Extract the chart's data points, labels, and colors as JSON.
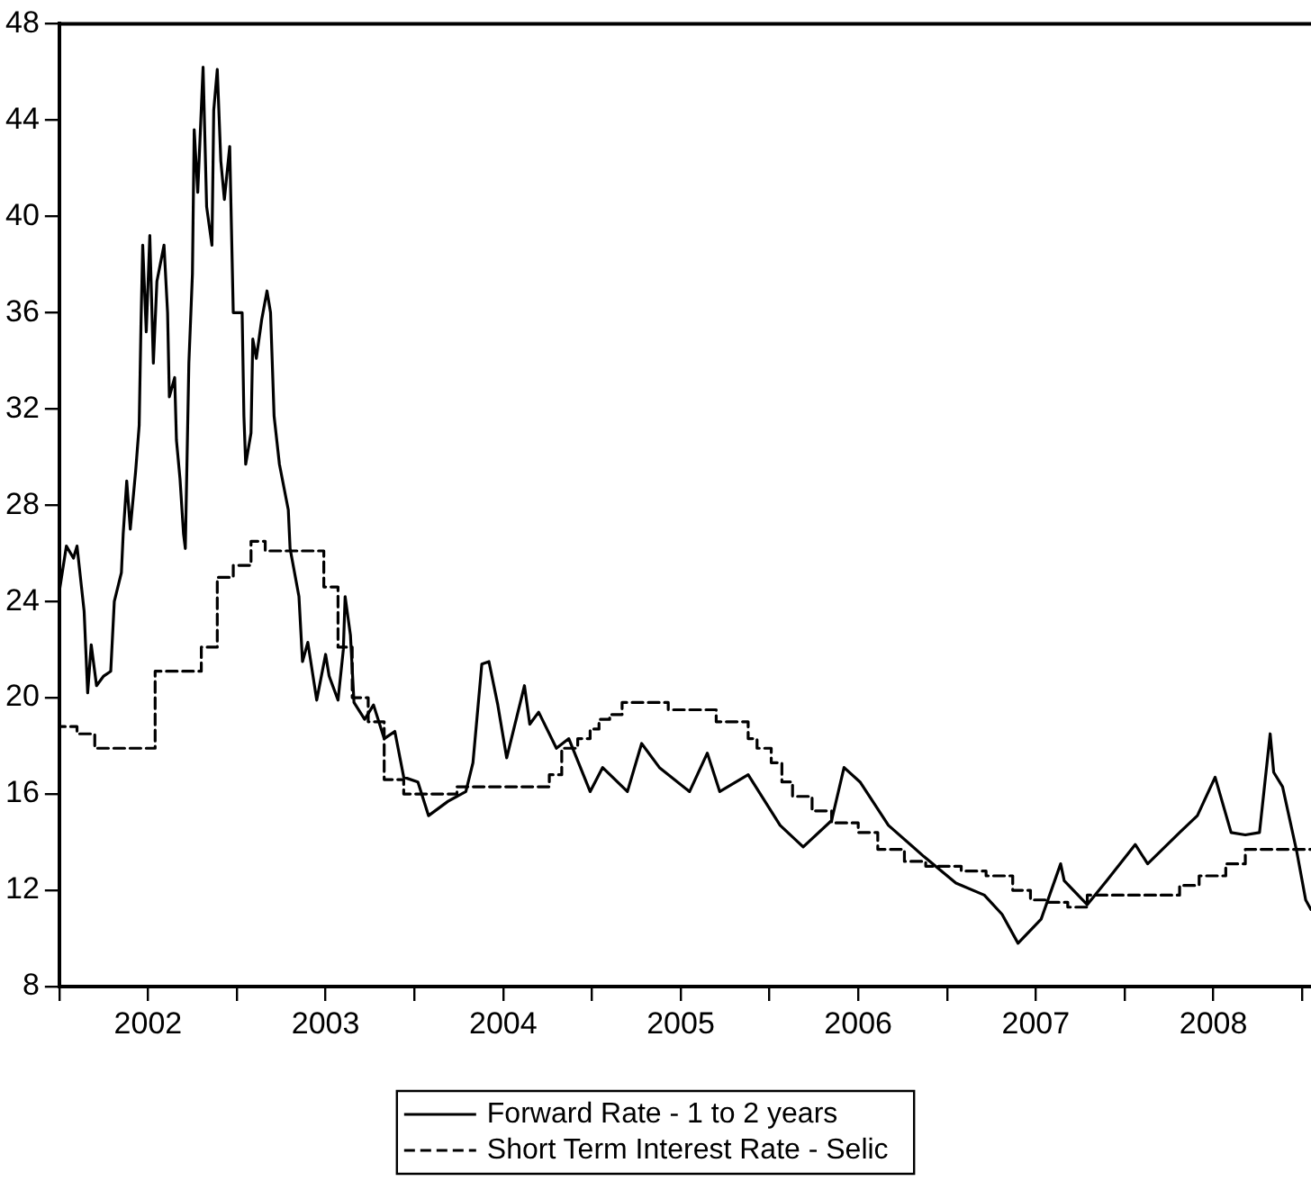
{
  "chart_data": {
    "type": "line",
    "xlim": [
      2002,
      2009.05
    ],
    "ylim": [
      8,
      48
    ],
    "yticks": [
      8,
      12,
      16,
      20,
      24,
      28,
      32,
      36,
      40,
      44,
      48
    ],
    "xticks": [
      {
        "value": 2002,
        "label": null
      },
      {
        "value": 2002.5,
        "label": "2002"
      },
      {
        "value": 2003,
        "label": null
      },
      {
        "value": 2003.5,
        "label": "2003"
      },
      {
        "value": 2004,
        "label": null
      },
      {
        "value": 2004.5,
        "label": "2004"
      },
      {
        "value": 2005,
        "label": null
      },
      {
        "value": 2005.5,
        "label": "2005"
      },
      {
        "value": 2006,
        "label": null
      },
      {
        "value": 2006.5,
        "label": "2006"
      },
      {
        "value": 2007,
        "label": null
      },
      {
        "value": 2007.5,
        "label": "2007"
      },
      {
        "value": 2008,
        "label": null
      },
      {
        "value": 2008.5,
        "label": "2008"
      },
      {
        "value": 2009,
        "label": null
      }
    ],
    "grid": false,
    "legend": "bottom",
    "marker": "none",
    "series": [
      {
        "name": "Forward Rate - 1 to 2 years",
        "color": "#000000",
        "line_style": "solid",
        "x": [
          2002,
          2002.04,
          2002.08,
          2002.1,
          2002.14,
          2002.16,
          2002.18,
          2002.21,
          2002.25,
          2002.29,
          2002.31,
          2002.35,
          2002.36,
          2002.38,
          2002.4,
          2002.43,
          2002.45,
          2002.46,
          2002.47,
          2002.49,
          2002.51,
          2002.53,
          2002.55,
          2002.59,
          2002.61,
          2002.62,
          2002.65,
          2002.66,
          2002.68,
          2002.7,
          2002.71,
          2002.73,
          2002.75,
          2002.76,
          2002.78,
          2002.81,
          2002.83,
          2002.86,
          2002.87,
          2002.89,
          2002.91,
          2002.93,
          2002.96,
          2002.98,
          2003.03,
          2003.04,
          2003.05,
          2003.08,
          2003.09,
          2003.11,
          2003.14,
          2003.17,
          2003.19,
          2003.21,
          2003.24,
          2003.29,
          2003.3,
          2003.35,
          2003.37,
          2003.4,
          2003.45,
          2003.5,
          2003.52,
          2003.57,
          2003.6,
          2003.61,
          2003.64,
          2003.66,
          2003.72,
          2003.77,
          2003.83,
          2003.89,
          2003.94,
          2004.02,
          2004.08,
          2004.19,
          2004.29,
          2004.33,
          2004.38,
          2004.42,
          2004.47,
          2004.52,
          2004.62,
          2004.65,
          2004.7,
          2004.8,
          2004.87,
          2004.99,
          2005.06,
          2005.2,
          2005.28,
          2005.38,
          2005.55,
          2005.65,
          2005.72,
          2005.88,
          2006.06,
          2006.19,
          2006.35,
          2006.42,
          2006.51,
          2006.67,
          2006.87,
          2007.05,
          2007.21,
          2007.31,
          2007.4,
          2007.53,
          2007.64,
          2007.66,
          2007.79,
          2007.9,
          2008.06,
          2008.13,
          2008.31,
          2008.41,
          2008.51,
          2008.6,
          2008.68,
          2008.76,
          2008.82,
          2008.84,
          2008.89,
          2008.97,
          2009.02,
          2009.05
        ],
        "values": [
          24.4,
          26.3,
          25.8,
          26.3,
          23.6,
          20.2,
          22.2,
          20.5,
          20.9,
          21.1,
          24,
          25.2,
          26.8,
          29,
          27,
          29.4,
          31.3,
          35.4,
          38.8,
          35.2,
          39.2,
          33.9,
          37.3,
          38.8,
          36,
          32.5,
          33.3,
          30.7,
          29.1,
          26.8,
          26.2,
          33.9,
          37.6,
          43.6,
          41,
          46.2,
          40.4,
          38.8,
          44.4,
          46.1,
          42.3,
          40.7,
          42.9,
          36,
          36,
          31.7,
          29.7,
          31,
          34.9,
          34.1,
          35.7,
          36.9,
          36,
          31.7,
          29.7,
          27.8,
          26.2,
          24.2,
          21.5,
          22.3,
          19.9,
          21.8,
          20.9,
          19.9,
          22,
          24.2,
          22.6,
          19.8,
          19.1,
          19.7,
          18.3,
          18.6,
          16.7,
          16.5,
          15.1,
          15.7,
          16.1,
          17.3,
          21.4,
          21.5,
          19.7,
          17.5,
          20.5,
          18.9,
          19.4,
          17.9,
          18.3,
          16.1,
          17.1,
          16.1,
          18.1,
          17.1,
          16.1,
          17.7,
          16.1,
          16.8,
          14.7,
          13.8,
          14.9,
          17.1,
          16.5,
          14.7,
          13.4,
          12.3,
          11.8,
          11,
          9.8,
          10.8,
          13.1,
          12.4,
          11.4,
          12.4,
          13.9,
          13.1,
          14.4,
          15.1,
          16.7,
          14.4,
          14.3,
          14.4,
          18.5,
          16.9,
          16.3,
          13.6,
          11.6,
          11.2
        ]
      },
      {
        "name": "Short Term Interest Rate - Selic",
        "color": "#000000",
        "type": "step",
        "line_style": "dashed",
        "x": [
          2002,
          2002.1,
          2002.2,
          2002.54,
          2002.8,
          2002.89,
          2002.98,
          2003.08,
          2003.16,
          2003.49,
          2003.57,
          2003.65,
          2003.74,
          2003.83,
          2003.94,
          2004.24,
          2004.76,
          2004.83,
          2004.92,
          2004.99,
          2005.04,
          2005.1,
          2005.17,
          2005.43,
          2005.7,
          2005.88,
          2005.93,
          2006.01,
          2006.07,
          2006.13,
          2006.24,
          2006.35,
          2006.5,
          2006.61,
          2006.76,
          2006.88,
          2007.08,
          2007.22,
          2007.37,
          2007.47,
          2007.56,
          2007.68,
          2007.79,
          2008.31,
          2008.42,
          2008.57,
          2008.68,
          2008.7,
          2009.05
        ],
        "values": [
          19,
          18.8,
          18.5,
          17.9,
          21.1,
          22.1,
          25,
          25.5,
          26.5,
          26.1,
          24.6,
          22.1,
          20,
          19,
          16.6,
          16,
          16.3,
          16.8,
          17.9,
          18.3,
          18.7,
          19.1,
          19.3,
          19.8,
          19.5,
          19,
          18.3,
          17.9,
          17.3,
          16.5,
          15.9,
          15.3,
          14.8,
          14.4,
          13.7,
          13.2,
          13,
          12.8,
          12.6,
          12,
          11.6,
          11.5,
          11.3,
          11.8,
          12.2,
          12.6,
          13.1,
          13.7,
          13.7
        ]
      }
    ]
  }
}
